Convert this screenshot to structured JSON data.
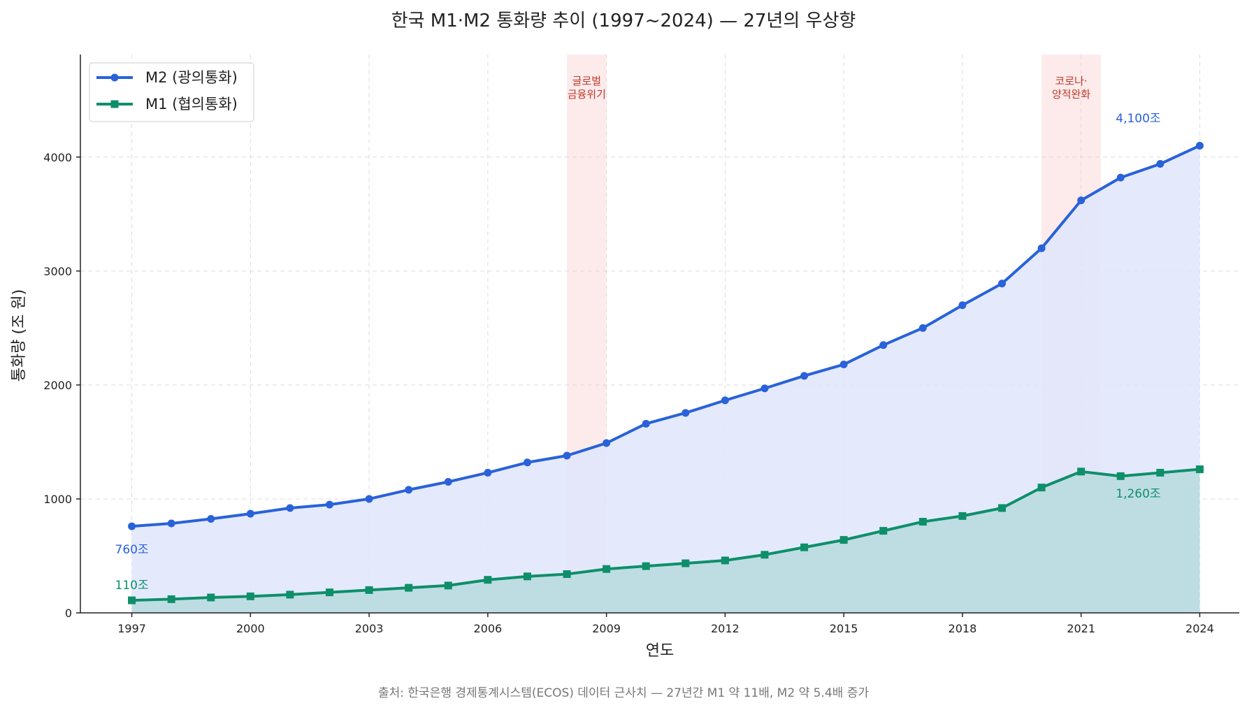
{
  "chart_data": {
    "type": "line",
    "title": "한국 M1·M2 통화량 추이 (1997~2024) — 27년의 우상향",
    "xlabel": "연도",
    "ylabel": "통화량 (조 원)",
    "xlim": [
      1995.7,
      2025.0
    ],
    "ylim": [
      0,
      4900
    ],
    "xticks": [
      1997,
      2000,
      2003,
      2006,
      2009,
      2012,
      2015,
      2018,
      2021,
      2024
    ],
    "yticks": [
      0,
      1000,
      2000,
      3000,
      4000
    ],
    "grid": true,
    "legend_position": "top-left",
    "area_fill": true,
    "x": [
      1997,
      1998,
      1999,
      2000,
      2001,
      2002,
      2003,
      2004,
      2005,
      2006,
      2007,
      2008,
      2009,
      2010,
      2011,
      2012,
      2013,
      2014,
      2015,
      2016,
      2017,
      2018,
      2019,
      2020,
      2021,
      2022,
      2023,
      2024
    ],
    "series": [
      {
        "name": "M2 (광의통화)",
        "color": "#2962d9",
        "fill": "#dfe6fb",
        "marker": "circle",
        "values": [
          760,
          785,
          825,
          870,
          920,
          950,
          1000,
          1080,
          1150,
          1230,
          1320,
          1380,
          1490,
          1660,
          1755,
          1865,
          1970,
          2080,
          2180,
          2350,
          2500,
          2700,
          2890,
          3200,
          3620,
          3820,
          3940,
          4100
        ]
      },
      {
        "name": "M1 (협의통화)",
        "color": "#0e8f6a",
        "fill": "#b9dbe0",
        "marker": "square",
        "values": [
          110,
          120,
          135,
          145,
          160,
          180,
          200,
          220,
          240,
          290,
          320,
          340,
          385,
          410,
          435,
          460,
          510,
          575,
          640,
          720,
          800,
          850,
          920,
          1100,
          1240,
          1200,
          1230,
          1260
        ]
      }
    ],
    "shaded_periods": [
      {
        "start": 2008,
        "end": 2009,
        "label_lines": [
          "글로벌",
          "금융위기"
        ]
      },
      {
        "start": 2020,
        "end": 2021.5,
        "label_lines": [
          "코로나·",
          "양적완화"
        ]
      }
    ],
    "annotations": [
      {
        "text": "760조",
        "series": "M2 (광의통화)",
        "x": 1997
      },
      {
        "text": "110조",
        "series": "M1 (협의통화)",
        "x": 1997
      },
      {
        "text": "4,100조",
        "series": "M2 (광의통화)",
        "x": 2024
      },
      {
        "text": "1,260조",
        "series": "M1 (협의통화)",
        "x": 2024
      }
    ],
    "source": "출처: 한국은행 경제통계시스템(ECOS) 데이터 근사치 — 27년간 M1 약 11배, M2 약 5.4배 증가"
  }
}
